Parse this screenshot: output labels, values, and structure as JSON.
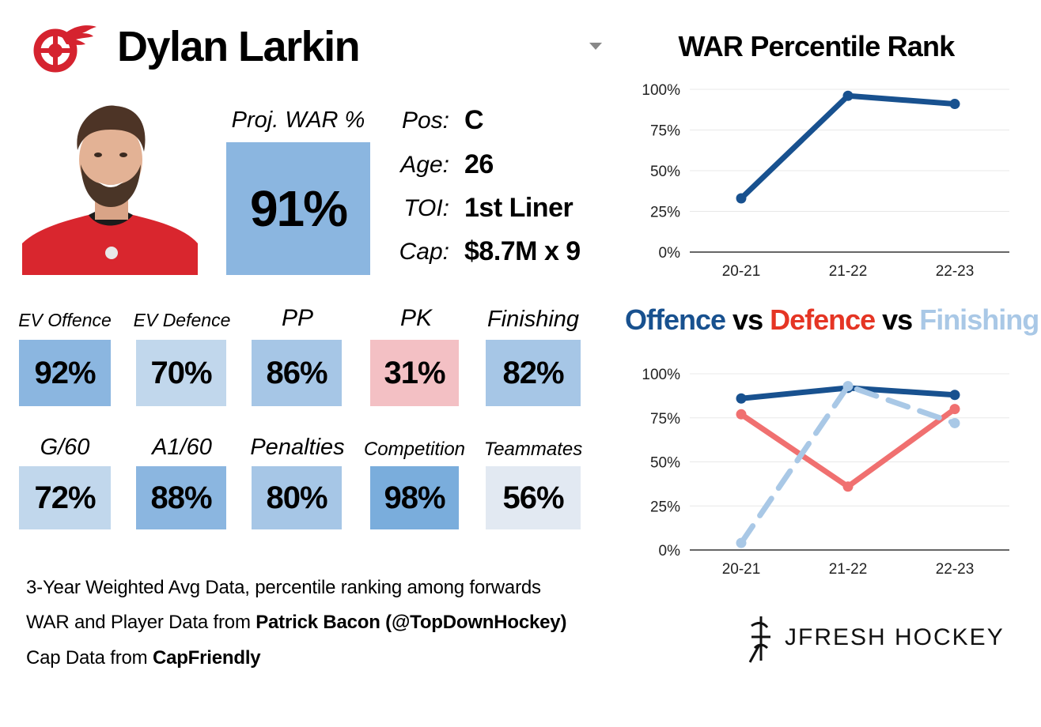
{
  "header": {
    "player_name": "Dylan Larkin",
    "team_logo": "red-wings-winged-wheel-logo"
  },
  "proj_war": {
    "label": "Proj. WAR %",
    "value": "91%",
    "color": "#8bb6e0"
  },
  "bio": [
    {
      "label": "Pos:",
      "value": "C"
    },
    {
      "label": "Age:",
      "value": "26"
    },
    {
      "label": "TOI:",
      "value": "1st Liner"
    },
    {
      "label": "Cap:",
      "value": "$8.7M x 9"
    }
  ],
  "metrics": [
    {
      "label": "EV Offence",
      "value": "92%",
      "color": "#8bb6e0"
    },
    {
      "label": "EV Defence",
      "value": "70%",
      "color": "#c1d7ec"
    },
    {
      "label": "PP",
      "value": "86%",
      "color": "#a6c6e6"
    },
    {
      "label": "PK",
      "value": "31%",
      "color": "#f3c0c4"
    },
    {
      "label": "Finishing",
      "value": "82%",
      "color": "#a6c6e6"
    },
    {
      "label": "G/60",
      "value": "72%",
      "color": "#c1d7ec"
    },
    {
      "label": "A1/60",
      "value": "88%",
      "color": "#8bb6e0"
    },
    {
      "label": "Penalties",
      "value": "80%",
      "color": "#a6c6e6"
    },
    {
      "label": "Competition",
      "value": "98%",
      "color": "#7aaddc"
    },
    {
      "label": "Teammates",
      "value": "56%",
      "color": "#e2e9f2"
    }
  ],
  "footer": {
    "line1": "3-Year Weighted Avg Data, percentile ranking among forwards",
    "line2_prefix": "WAR and Player Data from ",
    "line2_bold": "Patrick Bacon (@TopDownHockey)",
    "line3_prefix": "Cap Data from ",
    "line3_bold": "CapFriendly"
  },
  "brand": {
    "text": "JFRESH HOCKEY"
  },
  "colors": {
    "offence": "#18518f",
    "defence": "#f07070",
    "defence_title": "#e53524",
    "finishing": "#a9c8e6",
    "grid": "#e8e8e8"
  },
  "chart_data": [
    {
      "type": "line",
      "title": "WAR Percentile Rank",
      "categories": [
        "20-21",
        "21-22",
        "22-23"
      ],
      "series": [
        {
          "values": [
            33,
            96,
            91
          ],
          "color": "#18518f"
        }
      ],
      "ylim": [
        0,
        100
      ],
      "yticks": [
        "0%",
        "25%",
        "50%",
        "75%",
        "100%"
      ],
      "grid": true
    },
    {
      "type": "line",
      "title_parts": [
        {
          "text": "Offence",
          "color": "#18518f"
        },
        {
          "text": " vs ",
          "color": "#000000"
        },
        {
          "text": "Defence",
          "color": "#e53524"
        },
        {
          "text": " vs ",
          "color": "#000000"
        },
        {
          "text": "Finishing",
          "color": "#a9c8e6"
        }
      ],
      "categories": [
        "20-21",
        "21-22",
        "22-23"
      ],
      "series": [
        {
          "name": "Offence",
          "values": [
            86,
            92,
            88
          ],
          "color": "#18518f",
          "dash": false
        },
        {
          "name": "Defence",
          "values": [
            77,
            36,
            80
          ],
          "color": "#f07070",
          "dash": false
        },
        {
          "name": "Finishing",
          "values": [
            4,
            93,
            72
          ],
          "color": "#a9c8e6",
          "dash": true
        }
      ],
      "ylim": [
        0,
        100
      ],
      "yticks": [
        "0%",
        "25%",
        "50%",
        "75%",
        "100%"
      ],
      "grid": true
    }
  ]
}
